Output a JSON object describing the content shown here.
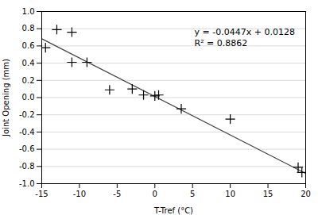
{
  "chart_data": {
    "type": "scatter",
    "xlabel": "T-Tref (°C)",
    "ylabel": "Joint Opening (mm)",
    "annotations": [
      "y = -0.0447x + 0.0128",
      "R² = 0.8862"
    ],
    "series": [
      {
        "type": "scatter",
        "marker": "plus",
        "color": "black",
        "x": [
          -14.5,
          -13,
          -11,
          -11,
          -9,
          -6,
          -3,
          -1.5,
          0,
          0.5,
          3.5,
          10,
          19,
          19.5
        ],
        "values": [
          0.58,
          0.79,
          0.76,
          0.41,
          0.41,
          0.09,
          0.1,
          0.03,
          0.02,
          0.03,
          -0.13,
          -0.25,
          -0.81,
          -0.87
        ]
      },
      {
        "type": "line",
        "color": "#444444",
        "x": [
          -15,
          20
        ],
        "values": [
          0.6833,
          -0.8812
        ]
      }
    ],
    "xlim": [
      -15,
      20
    ],
    "ylim": [
      -1,
      1
    ],
    "xticks": [
      -15,
      -10,
      -5,
      0,
      5,
      10,
      15,
      20
    ],
    "yticks": [
      {
        "value": -1,
        "label": "-1.0"
      },
      -0.8,
      -0.6,
      -0.4,
      -0.2,
      {
        "value": 0,
        "label": "0.0"
      },
      0.2,
      0.4,
      0.6,
      0.8,
      {
        "value": 1,
        "label": "1.0"
      }
    ],
    "grid": "y"
  }
}
